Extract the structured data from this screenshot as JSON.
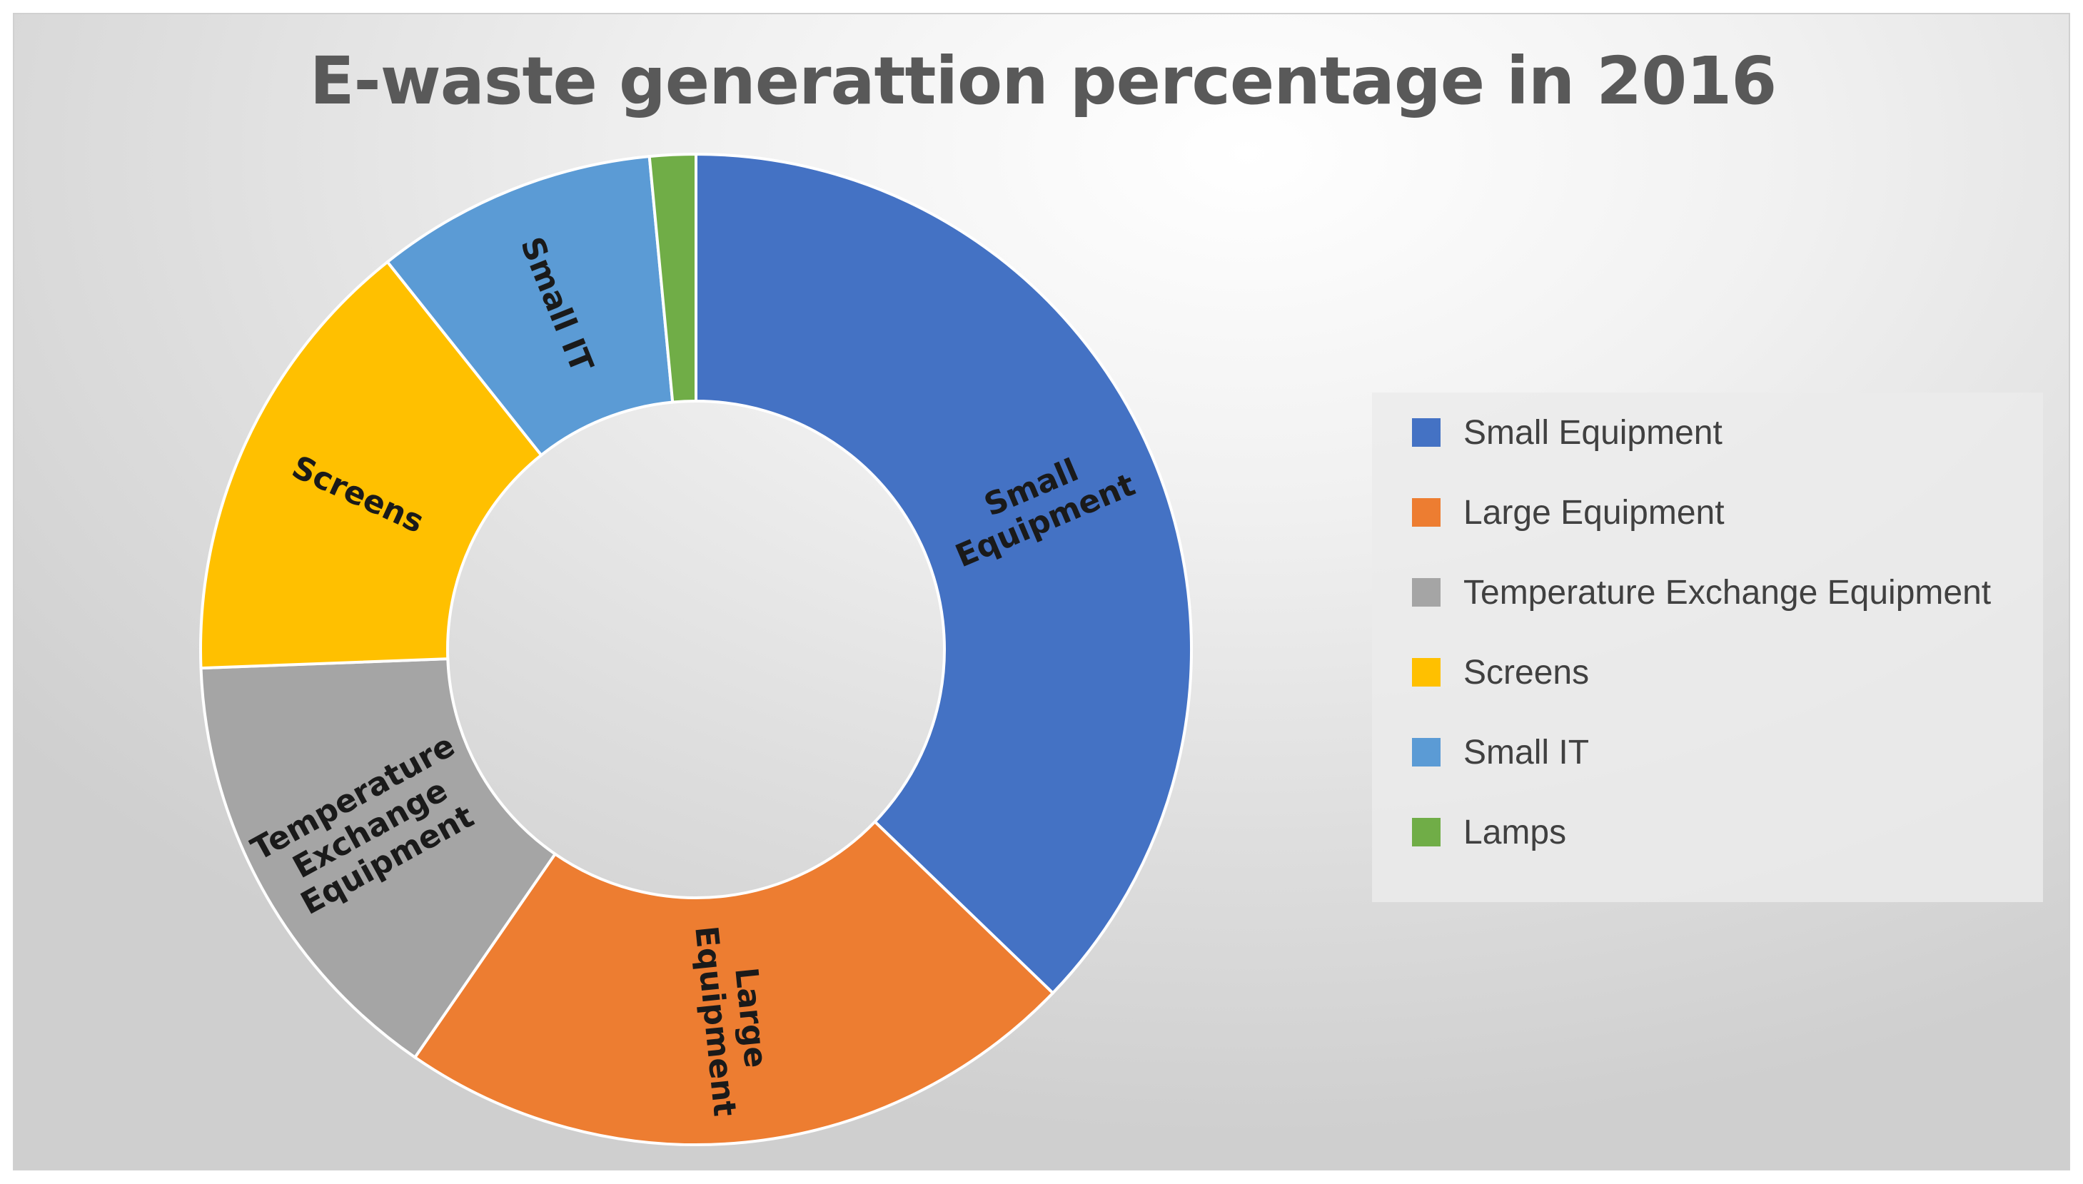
{
  "chart_data": {
    "type": "pie",
    "subtype": "donut",
    "title": "E-waste generattion percentage in 2016",
    "categories": [
      "Small Equipment",
      "Large Equipment",
      "Temperature Exchange Equipment",
      "Screens",
      "Small IT",
      "Lamps"
    ],
    "values": [
      37.2,
      22.4,
      14.8,
      14.9,
      9.2,
      1.5
    ],
    "unit": "%",
    "segment_labels": [
      [
        "Small",
        "Equipment"
      ],
      [
        "Large",
        "Equipment"
      ],
      [
        "Temperature",
        "Exchange",
        "Equipment"
      ],
      [
        "Screens"
      ],
      [
        "Small IT"
      ],
      []
    ],
    "colors": [
      "#4472C4",
      "#ED7D31",
      "#A5A5A5",
      "#FFC000",
      "#5B9BD5",
      "#70AD47"
    ],
    "legend_position": "right"
  },
  "legend": {
    "items": [
      {
        "label": "Small Equipment",
        "color": "#4472C4"
      },
      {
        "label": "Large Equipment",
        "color": "#ED7D31"
      },
      {
        "label": "Temperature Exchange Equipment",
        "color": "#A5A5A5"
      },
      {
        "label": "Screens",
        "color": "#FFC000"
      },
      {
        "label": "Small IT",
        "color": "#5B9BD5"
      },
      {
        "label": "Lamps",
        "color": "#70AD47"
      }
    ]
  }
}
